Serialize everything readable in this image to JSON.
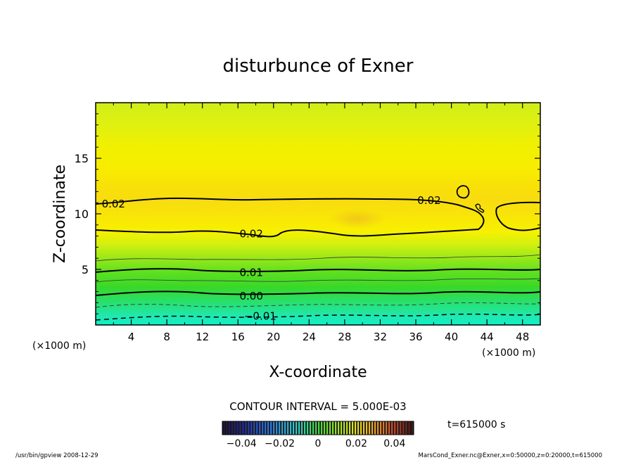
{
  "chart_data": {
    "type": "contour",
    "title": "disturbunce of Exner",
    "xlabel": "X-coordinate",
    "ylabel": "Z-coordinate",
    "x_unit_left": "(×1000 m)",
    "x_unit_right": "(×1000 m)",
    "xlim": [
      0,
      50
    ],
    "ylim": [
      0,
      20
    ],
    "x_ticks": [
      4,
      8,
      12,
      16,
      20,
      24,
      28,
      32,
      36,
      40,
      44,
      48
    ],
    "y_ticks": [
      5,
      10,
      15
    ],
    "contour_interval_text": "CONTOUR INTERVAL = 5.000E-03",
    "time_text": "t=615000 s",
    "colorbar": {
      "min": -0.05,
      "max": 0.05,
      "tick_values": [
        -0.04,
        -0.02,
        0,
        0.02,
        0.04
      ],
      "tick_labels": [
        "−0.04",
        "−0.02",
        "0",
        "0.02",
        "0.04"
      ]
    },
    "contour_labels": [
      {
        "text": "0.02",
        "x": 2.0,
        "z": 10.9
      },
      {
        "text": "0.02",
        "x": 17.5,
        "z": 8.2
      },
      {
        "text": "0.02",
        "x": 37.5,
        "z": 11.2
      },
      {
        "text": "0.01",
        "x": 17.5,
        "z": 4.7
      },
      {
        "text": "0.00",
        "x": 17.5,
        "z": 2.6
      },
      {
        "text": "−0.01",
        "x": 18.5,
        "z": 0.8
      }
    ],
    "colors": {
      "band_low": "#20e8c0",
      "band_mid": "#40d820",
      "band_high": "#f8f000",
      "core": "#f8d010"
    }
  },
  "footer": {
    "left": "/usr/bin/gpview   2008-12-29",
    "right": "MarsCond_Exner.nc@Exner,x=0:50000,z=0:20000,t=615000"
  }
}
